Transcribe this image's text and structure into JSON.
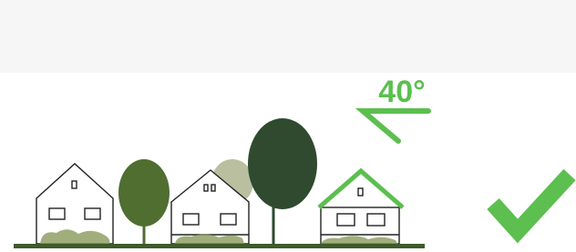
{
  "angle_label": "40°"
}
